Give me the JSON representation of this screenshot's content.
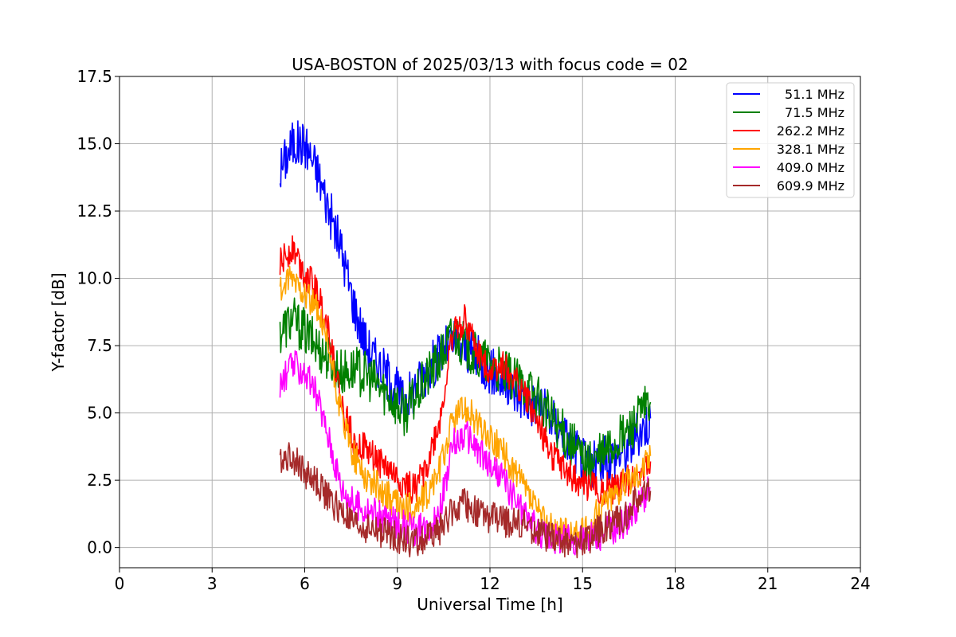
{
  "chart_data": {
    "type": "line",
    "title": "USA-BOSTON of 2025/03/13 with focus code = 02",
    "xlabel": "Universal Time [h]",
    "ylabel": "Y-factor [dB]",
    "xlim": [
      0,
      24
    ],
    "ylim": [
      -0.75,
      17.5
    ],
    "xticks": [
      0,
      3,
      6,
      9,
      12,
      15,
      18,
      21,
      24
    ],
    "yticks": [
      0.0,
      2.5,
      5.0,
      7.5,
      10.0,
      12.5,
      15.0,
      17.5
    ],
    "xtick_labels": [
      "0",
      "3",
      "6",
      "9",
      "12",
      "15",
      "18",
      "21",
      "24"
    ],
    "ytick_labels": [
      "0.0",
      "2.5",
      "5.0",
      "7.5",
      "10.0",
      "12.5",
      "15.0",
      "17.5"
    ],
    "grid": true,
    "legend_position": "top-right",
    "series": [
      {
        "name": "51.1 MHz",
        "color": "#0000ff",
        "x": [
          5.2,
          5.6,
          6.0,
          6.4,
          6.8,
          7.2,
          7.6,
          8.0,
          8.4,
          8.8,
          9.2,
          9.6,
          10.0,
          10.4,
          10.8,
          11.2,
          11.6,
          12.0,
          12.4,
          12.8,
          13.2,
          13.6,
          14.0,
          14.4,
          14.8,
          15.2,
          15.6,
          16.0,
          16.4,
          16.8,
          17.2
        ],
        "y": [
          14.0,
          15.0,
          15.0,
          14.0,
          12.5,
          11.0,
          9.0,
          7.5,
          6.8,
          6.2,
          5.4,
          6.0,
          6.6,
          7.2,
          7.6,
          7.4,
          7.0,
          6.6,
          6.2,
          5.8,
          5.5,
          5.2,
          4.8,
          4.2,
          3.6,
          3.0,
          3.2,
          3.4,
          3.6,
          4.2,
          4.8
        ]
      },
      {
        "name": "71.5 MHz",
        "color": "#008000",
        "x": [
          5.2,
          5.6,
          6.0,
          6.4,
          6.8,
          7.2,
          7.6,
          8.0,
          8.4,
          8.8,
          9.2,
          9.6,
          10.0,
          10.4,
          10.8,
          11.2,
          11.6,
          12.0,
          12.4,
          12.8,
          13.2,
          13.6,
          14.0,
          14.4,
          14.8,
          15.2,
          15.6,
          16.0,
          16.4,
          16.8,
          17.2
        ],
        "y": [
          8.0,
          8.5,
          8.0,
          7.5,
          7.0,
          6.5,
          6.6,
          6.4,
          6.0,
          5.6,
          5.0,
          5.6,
          6.4,
          7.0,
          8.0,
          7.5,
          7.0,
          6.8,
          6.5,
          6.2,
          6.0,
          5.4,
          4.8,
          4.2,
          3.6,
          3.0,
          3.4,
          3.8,
          4.2,
          4.8,
          5.4
        ]
      },
      {
        "name": "262.2 MHz",
        "color": "#ff0000",
        "x": [
          5.2,
          5.6,
          6.0,
          6.4,
          6.8,
          7.2,
          7.6,
          8.0,
          8.4,
          8.8,
          9.2,
          9.6,
          10.0,
          10.4,
          10.8,
          11.2,
          11.6,
          12.0,
          12.4,
          12.8,
          13.2,
          13.6,
          14.0,
          14.4,
          14.8,
          15.2,
          15.6,
          16.0,
          16.4,
          16.8,
          17.2
        ],
        "y": [
          10.5,
          11.2,
          10.2,
          9.5,
          8.0,
          5.2,
          4.0,
          3.6,
          3.2,
          2.8,
          2.3,
          2.2,
          3.2,
          4.8,
          8.0,
          8.5,
          7.2,
          6.6,
          6.8,
          6.2,
          5.5,
          4.5,
          3.5,
          2.8,
          2.5,
          2.3,
          2.2,
          2.2,
          2.4,
          2.8,
          3.2
        ]
      },
      {
        "name": "328.1 MHz",
        "color": "#ffa500",
        "x": [
          5.2,
          5.6,
          6.0,
          6.4,
          6.8,
          7.2,
          7.6,
          8.0,
          8.4,
          8.8,
          9.2,
          9.6,
          10.0,
          10.4,
          10.8,
          11.2,
          11.6,
          12.0,
          12.4,
          12.8,
          13.2,
          13.6,
          14.0,
          14.4,
          14.8,
          15.2,
          15.6,
          16.0,
          16.4,
          16.8,
          17.2
        ],
        "y": [
          9.5,
          10.0,
          9.5,
          8.8,
          7.2,
          4.8,
          3.4,
          2.6,
          2.2,
          1.8,
          1.4,
          1.5,
          2.0,
          3.0,
          4.8,
          5.2,
          4.6,
          4.0,
          3.6,
          2.8,
          2.0,
          1.2,
          0.7,
          0.5,
          0.5,
          0.6,
          1.6,
          2.0,
          2.4,
          2.8,
          3.4
        ]
      },
      {
        "name": "409.0 MHz",
        "color": "#ff00ff",
        "x": [
          5.2,
          5.6,
          6.0,
          6.4,
          6.8,
          7.2,
          7.6,
          8.0,
          8.4,
          8.8,
          9.2,
          9.6,
          10.0,
          10.4,
          10.8,
          11.2,
          11.6,
          12.0,
          12.4,
          12.8,
          13.2,
          13.6,
          14.0,
          14.4,
          14.8,
          15.2,
          15.6,
          16.0,
          16.4,
          16.8,
          17.2
        ],
        "y": [
          6.0,
          6.8,
          6.5,
          5.6,
          4.0,
          2.2,
          1.6,
          1.4,
          1.2,
          1.0,
          0.8,
          0.6,
          0.8,
          1.5,
          3.8,
          4.2,
          3.6,
          3.0,
          2.6,
          1.8,
          1.1,
          0.6,
          0.4,
          0.3,
          0.3,
          0.3,
          0.5,
          0.7,
          1.0,
          1.6,
          2.2
        ]
      },
      {
        "name": "609.9 MHz",
        "color": "#a52a2a",
        "x": [
          5.2,
          5.6,
          6.0,
          6.4,
          6.8,
          7.2,
          7.6,
          8.0,
          8.4,
          8.8,
          9.2,
          9.6,
          10.0,
          10.4,
          10.8,
          11.2,
          11.6,
          12.0,
          12.4,
          12.8,
          13.2,
          13.6,
          14.0,
          14.4,
          14.8,
          15.2,
          15.6,
          16.0,
          16.4,
          16.8,
          17.2
        ],
        "y": [
          3.3,
          3.4,
          2.8,
          2.4,
          1.8,
          1.3,
          0.8,
          0.7,
          0.6,
          0.5,
          0.3,
          0.2,
          0.4,
          0.7,
          1.4,
          1.6,
          1.3,
          1.1,
          1.0,
          0.9,
          0.8,
          0.5,
          0.3,
          0.2,
          0.2,
          0.3,
          0.7,
          0.9,
          1.2,
          1.8,
          2.1
        ]
      }
    ]
  }
}
